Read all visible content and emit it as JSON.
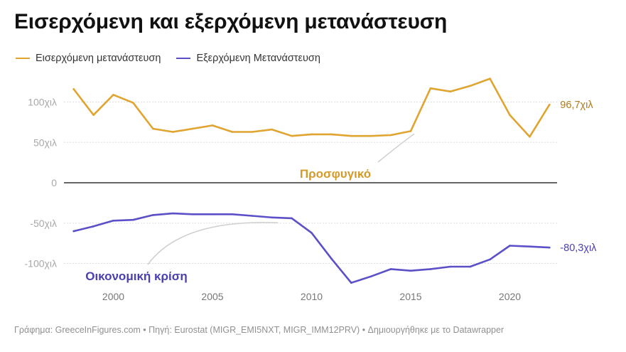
{
  "title": "Εισερχόμενη και εξερχόμενη μετανάστευση",
  "legend": {
    "immigration_label": "Εισερχόμενη μετανάστευση",
    "emigration_label": "Εξερχόμενη Μετανάστευση"
  },
  "colors": {
    "immigration": "#e0a430",
    "emigration": "#5b50c8",
    "immigration_text": "#b07a1c",
    "emigration_text": "#4a40b0",
    "grid": "#dddddd",
    "zero_line": "#333333",
    "tick_text": "#a8a8a8"
  },
  "chart_data": {
    "type": "line",
    "title": "Εισερχόμενη και εξερχόμενη μετανάστευση",
    "xlabel": "",
    "ylabel": "",
    "xlim": [
      1998,
      2023
    ],
    "ylim": [
      -125,
      135
    ],
    "x_ticks": [
      2000,
      2005,
      2010,
      2015,
      2020
    ],
    "x_tick_labels": [
      "2000",
      "2005",
      "2010",
      "2015",
      "2020"
    ],
    "y_ticks": [
      100,
      50,
      0,
      -50,
      -100
    ],
    "y_tick_labels": [
      "100χιλ",
      "50χιλ",
      "0",
      "-50χιλ",
      "-100χιλ"
    ],
    "series": [
      {
        "name": "Εισερχόμενη μετανάστευση",
        "x": [
          1998,
          1999,
          2000,
          2001,
          2002,
          2003,
          2004,
          2005,
          2006,
          2007,
          2008,
          2009,
          2010,
          2011,
          2012,
          2013,
          2014,
          2015,
          2016,
          2017,
          2018,
          2019,
          2020,
          2021,
          2022
        ],
        "values": [
          116,
          84,
          109,
          99,
          67,
          63,
          67,
          71,
          63,
          63,
          66,
          58,
          60,
          60,
          58,
          58,
          59,
          64,
          117,
          113,
          120,
          129,
          84,
          57,
          96.7
        ],
        "end_label": "96,7χιλ"
      },
      {
        "name": "Εξερχόμενη Μετανάστευση",
        "x": [
          1998,
          1999,
          2000,
          2001,
          2002,
          2003,
          2004,
          2005,
          2006,
          2007,
          2008,
          2009,
          2010,
          2011,
          2012,
          2013,
          2014,
          2015,
          2016,
          2017,
          2018,
          2019,
          2020,
          2021,
          2022
        ],
        "values": [
          -60,
          -54,
          -47,
          -46,
          -40,
          -38,
          -39,
          -39,
          -39,
          -41,
          -43,
          -44,
          -62,
          -94,
          -124,
          -116,
          -107,
          -109,
          -107,
          -104,
          -104,
          -95,
          -78,
          -79,
          -80.3
        ],
        "end_label": "-80,3χιλ"
      }
    ],
    "annotations": [
      {
        "text": "Προσφυγικό",
        "series": "immigration",
        "arrow_to": {
          "x": 2015,
          "y": 58
        }
      },
      {
        "text": "Οικονομική κρίση",
        "series": "emigration",
        "arrow_to": {
          "x": 2008.3,
          "y": -47
        }
      }
    ]
  },
  "footer": {
    "text": "Γράφημα: GreeceInFigures.com • Πηγή: Eurostat (MIGR_EMI5NXT, MIGR_IMM12PRV) • Δημιουργήθηκε με το Datawrapper"
  }
}
